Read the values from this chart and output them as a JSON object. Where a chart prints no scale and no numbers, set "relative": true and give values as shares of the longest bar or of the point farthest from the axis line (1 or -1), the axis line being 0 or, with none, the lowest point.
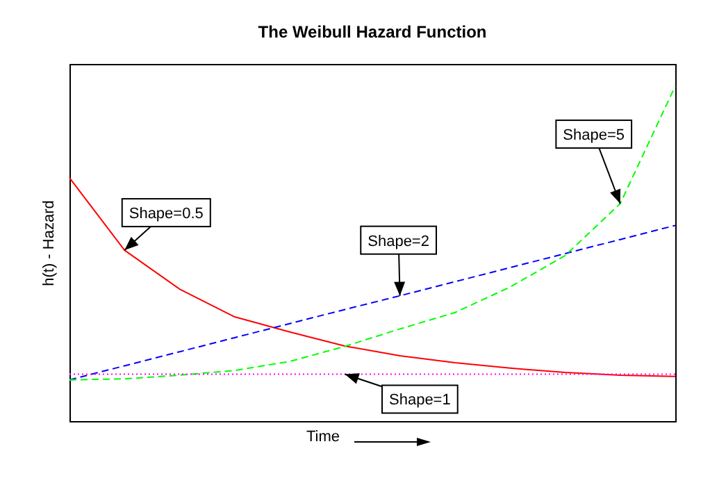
{
  "chart_data": {
    "type": "line",
    "title": "The Weibull Hazard Function",
    "xlabel": "Time",
    "ylabel": "h(t) - Hazard",
    "relative": true,
    "grid": false,
    "marker": "none",
    "categories": [
      null,
      null,
      null,
      null,
      null,
      null,
      null,
      null,
      null,
      null,
      null,
      null
    ],
    "series": [
      {
        "name": "Shape=0.5",
        "color": "#ff0000",
        "line_style": "solid",
        "values": [
          0.726,
          0.51,
          0.394,
          0.311,
          0.266,
          0.224,
          0.195,
          0.174,
          0.158,
          0.145,
          0.137,
          0.133
        ]
      },
      {
        "name": "Shape=2",
        "color": "#0000ff",
        "line_style": "dashed",
        "values": [
          0.123,
          0.165,
          0.207,
          0.249,
          0.291,
          0.333,
          0.374,
          0.416,
          0.458,
          0.5,
          0.542,
          0.584
        ]
      },
      {
        "name": "Shape=5",
        "color": "#00ff00",
        "line_style": "dashed",
        "values": [
          0.123,
          0.126,
          0.137,
          0.151,
          0.178,
          0.223,
          0.275,
          0.324,
          0.4,
          0.494,
          0.649,
          1.0
        ]
      },
      {
        "name": "Shape=1",
        "color": "#ff00ff",
        "line_style": "dotted",
        "values": [
          0.14,
          0.14,
          0.14,
          0.14,
          0.14,
          0.14,
          0.14,
          0.14,
          0.14,
          0.14,
          0.14,
          0.14
        ]
      }
    ]
  }
}
